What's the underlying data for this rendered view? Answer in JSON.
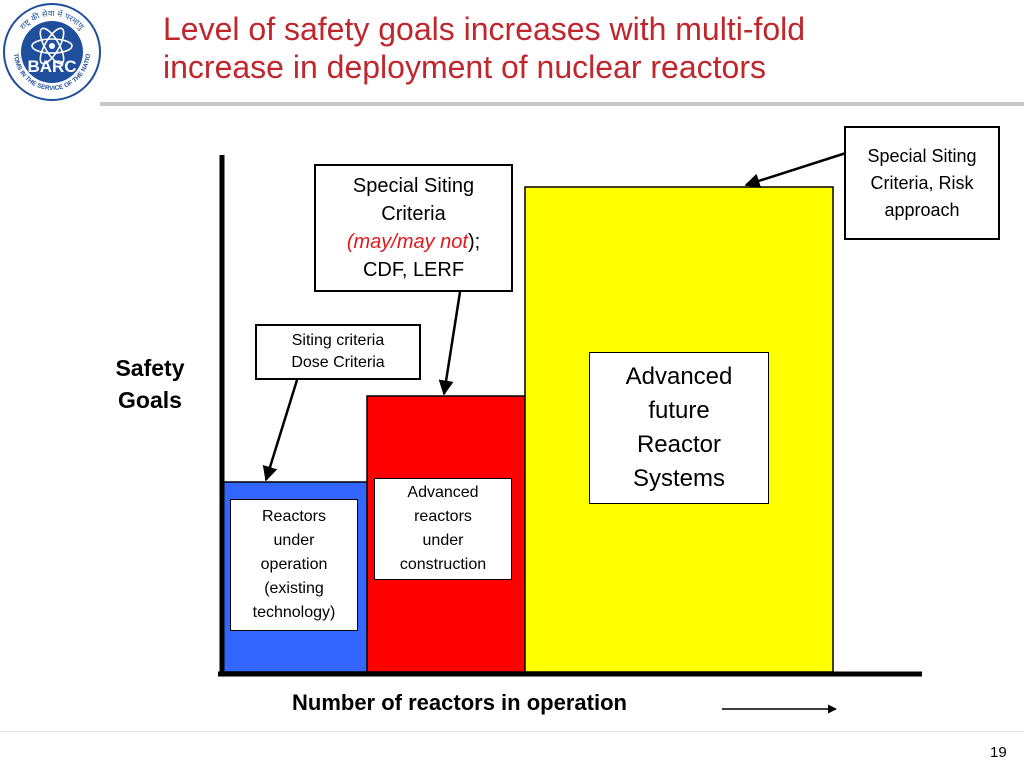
{
  "header": {
    "title_line1": "Level of safety goals increases with multi-fold",
    "title_line2": "increase in deployment of nuclear reactors",
    "logo": {
      "name": "BARC",
      "ring_top": "राष्ट्र की सेवा में परमाणु",
      "ring_bottom": "ATOMS IN THE SERVICE OF THE NATION",
      "color": "#1f4e9c"
    }
  },
  "diagram": {
    "y_axis_label": "Safety Goals",
    "x_axis_label": "Number of reactors in operation",
    "levels": [
      {
        "name": "Reactors under operation",
        "level": 1,
        "color": "#3366ff",
        "label_lines": [
          "Reactors",
          "under",
          "operation",
          "(existing",
          "technology)"
        ]
      },
      {
        "name": "Advanced reactors under construction",
        "level": 2,
        "color": "#ff0000",
        "label_lines": [
          "Advanced",
          "reactors",
          "under",
          "construction"
        ]
      },
      {
        "name": "Advanced future Reactor Systems",
        "level": 3,
        "color": "#ffff00",
        "label_lines": [
          "Advanced",
          "future",
          "Reactor",
          "Systems"
        ]
      }
    ],
    "callouts": {
      "siting_dose": [
        "Siting criteria",
        "Dose Criteria"
      ],
      "special_cdf": {
        "line1": "Special Siting",
        "line2": "Criteria",
        "line3_red": "(may/may not",
        "line3_rest": ");",
        "line4": "CDF, LERF"
      },
      "special_risk": [
        "Special Siting",
        "Criteria, Risk",
        "approach"
      ]
    }
  },
  "footer": {
    "page_number": "19"
  }
}
